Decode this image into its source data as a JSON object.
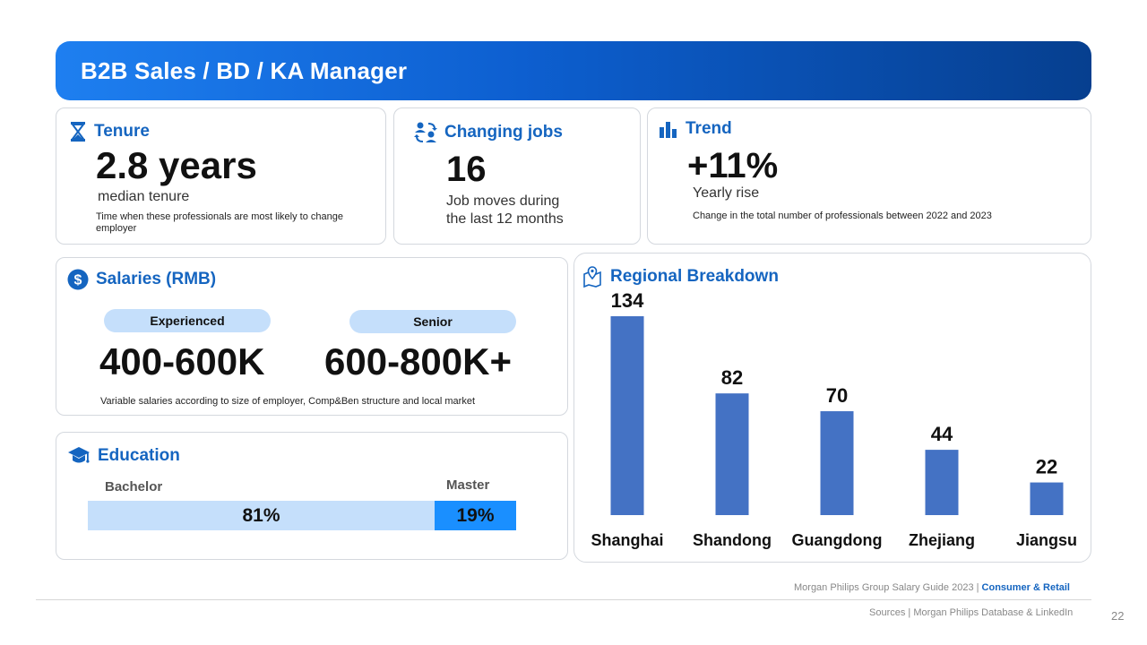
{
  "header": {
    "title": "B2B Sales / BD / KA Manager"
  },
  "tenure": {
    "title": "Tenure",
    "value": "2.8 years",
    "label": "median tenure",
    "note": "Time when these professionals are most likely to  change employer"
  },
  "jobs": {
    "title": "Changing jobs",
    "value": "16",
    "label_line1": "Job moves during",
    "label_line2": "the last 12 months"
  },
  "trend": {
    "title": "Trend",
    "value": "+11%",
    "label": "Yearly rise",
    "note": "Change in the total number of professionals between 2022 and 2023"
  },
  "salaries": {
    "title": "Salaries (RMB)",
    "experienced_label": "Experienced",
    "experienced_value": "400-600K",
    "senior_label": "Senior",
    "senior_value": "600-800K+",
    "note": "Variable salaries according to size of employer, Comp&Ben structure and local market"
  },
  "education": {
    "title": "Education",
    "bachelor_label": "Bachelor",
    "bachelor_value": "81%",
    "bachelor_share": 81,
    "master_label": "Master",
    "master_value": "19%",
    "master_share": 19,
    "colors": {
      "bachelor": "#c5dffb",
      "master": "#1a8fff"
    }
  },
  "regional": {
    "title": "Regional Breakdown"
  },
  "chart_data": {
    "type": "bar",
    "title": "Regional Breakdown",
    "categories": [
      "Shanghai",
      "Shandong",
      "Guangdong",
      "Zhejiang",
      "Jiangsu"
    ],
    "values": [
      134,
      82,
      70,
      44,
      22
    ],
    "xlabel": "",
    "ylabel": "",
    "ylim": [
      0,
      134
    ],
    "grid": false,
    "bar_color": "#4472c4"
  },
  "footer": {
    "guide": "Morgan Philips Group Salary Guide 2023 |",
    "guide_accent": "Consumer & Retail",
    "sources": "Sources | Morgan Philips Database & LinkedIn",
    "page_number": "22"
  },
  "icons": {
    "tenure": "hourglass-icon",
    "jobs": "people-swap-icon",
    "trend": "bar-chart-icon",
    "salaries": "dollar-icon",
    "education": "graduation-cap-icon",
    "regional": "map-pin-icon"
  },
  "colors": {
    "accent": "#1565c0",
    "header_start": "#1e7ff0",
    "header_end": "#063f8f"
  }
}
